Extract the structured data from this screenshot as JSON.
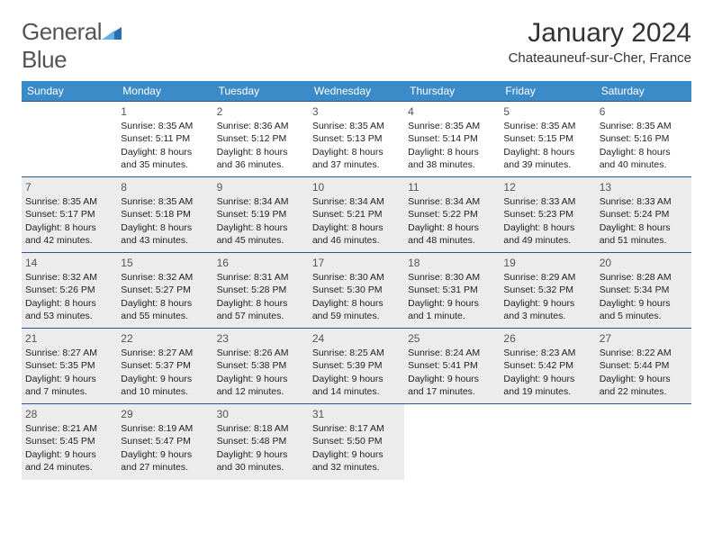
{
  "logo": {
    "text1": "General",
    "text2": "Blue",
    "icon_color": "#2a6db0"
  },
  "title": "January 2024",
  "location": "Chateauneuf-sur-Cher, France",
  "header_bg": "#3b8bc8",
  "border_color": "#2a5a8a",
  "shaded_bg": "#ececec",
  "day_headers": [
    "Sunday",
    "Monday",
    "Tuesday",
    "Wednesday",
    "Thursday",
    "Friday",
    "Saturday"
  ],
  "weeks": [
    [
      {
        "num": "",
        "lines": [],
        "shaded": false
      },
      {
        "num": "1",
        "lines": [
          "Sunrise: 8:35 AM",
          "Sunset: 5:11 PM",
          "Daylight: 8 hours",
          "and 35 minutes."
        ],
        "shaded": false
      },
      {
        "num": "2",
        "lines": [
          "Sunrise: 8:36 AM",
          "Sunset: 5:12 PM",
          "Daylight: 8 hours",
          "and 36 minutes."
        ],
        "shaded": false
      },
      {
        "num": "3",
        "lines": [
          "Sunrise: 8:35 AM",
          "Sunset: 5:13 PM",
          "Daylight: 8 hours",
          "and 37 minutes."
        ],
        "shaded": false
      },
      {
        "num": "4",
        "lines": [
          "Sunrise: 8:35 AM",
          "Sunset: 5:14 PM",
          "Daylight: 8 hours",
          "and 38 minutes."
        ],
        "shaded": false
      },
      {
        "num": "5",
        "lines": [
          "Sunrise: 8:35 AM",
          "Sunset: 5:15 PM",
          "Daylight: 8 hours",
          "and 39 minutes."
        ],
        "shaded": false
      },
      {
        "num": "6",
        "lines": [
          "Sunrise: 8:35 AM",
          "Sunset: 5:16 PM",
          "Daylight: 8 hours",
          "and 40 minutes."
        ],
        "shaded": false
      }
    ],
    [
      {
        "num": "7",
        "lines": [
          "Sunrise: 8:35 AM",
          "Sunset: 5:17 PM",
          "Daylight: 8 hours",
          "and 42 minutes."
        ],
        "shaded": true
      },
      {
        "num": "8",
        "lines": [
          "Sunrise: 8:35 AM",
          "Sunset: 5:18 PM",
          "Daylight: 8 hours",
          "and 43 minutes."
        ],
        "shaded": true
      },
      {
        "num": "9",
        "lines": [
          "Sunrise: 8:34 AM",
          "Sunset: 5:19 PM",
          "Daylight: 8 hours",
          "and 45 minutes."
        ],
        "shaded": true
      },
      {
        "num": "10",
        "lines": [
          "Sunrise: 8:34 AM",
          "Sunset: 5:21 PM",
          "Daylight: 8 hours",
          "and 46 minutes."
        ],
        "shaded": true
      },
      {
        "num": "11",
        "lines": [
          "Sunrise: 8:34 AM",
          "Sunset: 5:22 PM",
          "Daylight: 8 hours",
          "and 48 minutes."
        ],
        "shaded": true
      },
      {
        "num": "12",
        "lines": [
          "Sunrise: 8:33 AM",
          "Sunset: 5:23 PM",
          "Daylight: 8 hours",
          "and 49 minutes."
        ],
        "shaded": true
      },
      {
        "num": "13",
        "lines": [
          "Sunrise: 8:33 AM",
          "Sunset: 5:24 PM",
          "Daylight: 8 hours",
          "and 51 minutes."
        ],
        "shaded": true
      }
    ],
    [
      {
        "num": "14",
        "lines": [
          "Sunrise: 8:32 AM",
          "Sunset: 5:26 PM",
          "Daylight: 8 hours",
          "and 53 minutes."
        ],
        "shaded": true
      },
      {
        "num": "15",
        "lines": [
          "Sunrise: 8:32 AM",
          "Sunset: 5:27 PM",
          "Daylight: 8 hours",
          "and 55 minutes."
        ],
        "shaded": true
      },
      {
        "num": "16",
        "lines": [
          "Sunrise: 8:31 AM",
          "Sunset: 5:28 PM",
          "Daylight: 8 hours",
          "and 57 minutes."
        ],
        "shaded": true
      },
      {
        "num": "17",
        "lines": [
          "Sunrise: 8:30 AM",
          "Sunset: 5:30 PM",
          "Daylight: 8 hours",
          "and 59 minutes."
        ],
        "shaded": true
      },
      {
        "num": "18",
        "lines": [
          "Sunrise: 8:30 AM",
          "Sunset: 5:31 PM",
          "Daylight: 9 hours",
          "and 1 minute."
        ],
        "shaded": true
      },
      {
        "num": "19",
        "lines": [
          "Sunrise: 8:29 AM",
          "Sunset: 5:32 PM",
          "Daylight: 9 hours",
          "and 3 minutes."
        ],
        "shaded": true
      },
      {
        "num": "20",
        "lines": [
          "Sunrise: 8:28 AM",
          "Sunset: 5:34 PM",
          "Daylight: 9 hours",
          "and 5 minutes."
        ],
        "shaded": true
      }
    ],
    [
      {
        "num": "21",
        "lines": [
          "Sunrise: 8:27 AM",
          "Sunset: 5:35 PM",
          "Daylight: 9 hours",
          "and 7 minutes."
        ],
        "shaded": true
      },
      {
        "num": "22",
        "lines": [
          "Sunrise: 8:27 AM",
          "Sunset: 5:37 PM",
          "Daylight: 9 hours",
          "and 10 minutes."
        ],
        "shaded": true
      },
      {
        "num": "23",
        "lines": [
          "Sunrise: 8:26 AM",
          "Sunset: 5:38 PM",
          "Daylight: 9 hours",
          "and 12 minutes."
        ],
        "shaded": true
      },
      {
        "num": "24",
        "lines": [
          "Sunrise: 8:25 AM",
          "Sunset: 5:39 PM",
          "Daylight: 9 hours",
          "and 14 minutes."
        ],
        "shaded": true
      },
      {
        "num": "25",
        "lines": [
          "Sunrise: 8:24 AM",
          "Sunset: 5:41 PM",
          "Daylight: 9 hours",
          "and 17 minutes."
        ],
        "shaded": true
      },
      {
        "num": "26",
        "lines": [
          "Sunrise: 8:23 AM",
          "Sunset: 5:42 PM",
          "Daylight: 9 hours",
          "and 19 minutes."
        ],
        "shaded": true
      },
      {
        "num": "27",
        "lines": [
          "Sunrise: 8:22 AM",
          "Sunset: 5:44 PM",
          "Daylight: 9 hours",
          "and 22 minutes."
        ],
        "shaded": true
      }
    ],
    [
      {
        "num": "28",
        "lines": [
          "Sunrise: 8:21 AM",
          "Sunset: 5:45 PM",
          "Daylight: 9 hours",
          "and 24 minutes."
        ],
        "shaded": true
      },
      {
        "num": "29",
        "lines": [
          "Sunrise: 8:19 AM",
          "Sunset: 5:47 PM",
          "Daylight: 9 hours",
          "and 27 minutes."
        ],
        "shaded": true
      },
      {
        "num": "30",
        "lines": [
          "Sunrise: 8:18 AM",
          "Sunset: 5:48 PM",
          "Daylight: 9 hours",
          "and 30 minutes."
        ],
        "shaded": true
      },
      {
        "num": "31",
        "lines": [
          "Sunrise: 8:17 AM",
          "Sunset: 5:50 PM",
          "Daylight: 9 hours",
          "and 32 minutes."
        ],
        "shaded": true
      },
      {
        "num": "",
        "lines": [],
        "shaded": false
      },
      {
        "num": "",
        "lines": [],
        "shaded": false
      },
      {
        "num": "",
        "lines": [],
        "shaded": false
      }
    ]
  ]
}
